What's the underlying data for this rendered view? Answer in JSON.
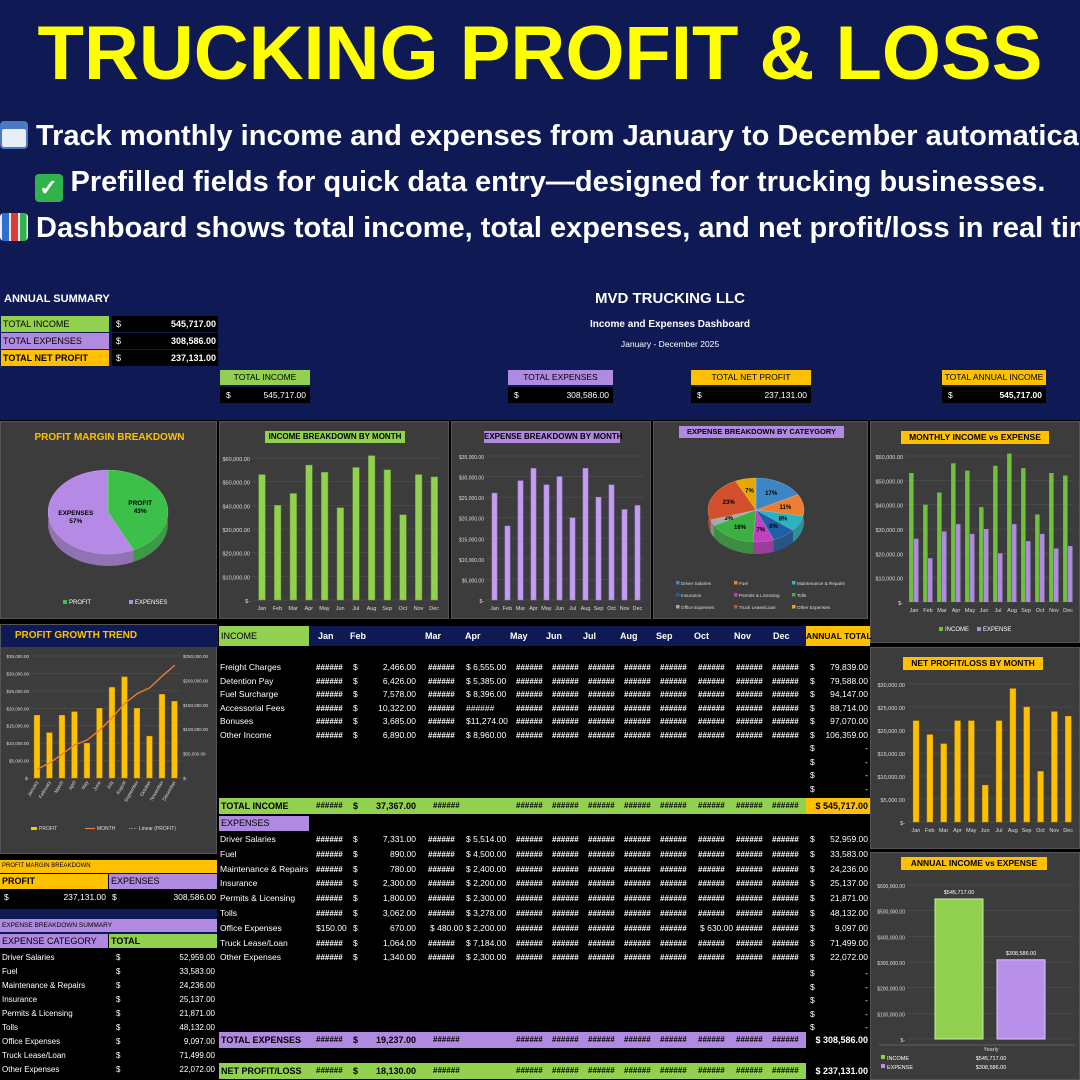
{
  "hero": {
    "title": "TRUCKING PROFIT & LOSS",
    "line1": "Track monthly income and expenses from January to December automatically.",
    "line2": "Prefilled fields for quick data entry—designed for trucking businesses.",
    "line3": "Dashboard shows total income, total expenses, and net profit/loss in real time.",
    "icons": [
      "calendar-icon",
      "check-box-icon",
      "bar-chart-icon"
    ]
  },
  "summary": {
    "title": "ANNUAL SUMMARY",
    "rows": [
      {
        "label": "TOTAL INCOME",
        "cur": "$",
        "value": "545,717.00"
      },
      {
        "label": "TOTAL EXPENSES",
        "cur": "$",
        "value": "308,586.00"
      },
      {
        "label": "TOTAL NET PROFIT",
        "cur": "$",
        "value": "237,131.00"
      }
    ]
  },
  "header": {
    "company": "MVD TRUCKING LLC",
    "subtitle": "Income and Expenses Dashboard",
    "period": "January - December 2025"
  },
  "kpis": [
    {
      "label": "TOTAL INCOME",
      "cur": "$",
      "value": "545,717.00",
      "color": "#92d050"
    },
    {
      "label": "TOTAL EXPENSES",
      "cur": "$",
      "value": "308,586.00",
      "color": "#b08ae0"
    },
    {
      "label": "TOTAL NET PROFIT",
      "cur": "$",
      "value": "237,131.00",
      "color": "#ffc000"
    },
    {
      "label": "TOTAL ANNUAL INCOME",
      "cur": "$",
      "value": "545,717.00",
      "color": "#ffc000"
    }
  ],
  "months_short": [
    "Jan",
    "Feb",
    "Mar",
    "Apr",
    "May",
    "Jun",
    "Jul",
    "Aug",
    "Sep",
    "Oct",
    "Nov",
    "Dec"
  ],
  "months_long": [
    "January",
    "February",
    "March",
    "April",
    "May",
    "June",
    "July",
    "August",
    "September",
    "October",
    "November",
    "December"
  ],
  "profit_margin_chart": {
    "title": "PROFIT MARGIN BREAKDOWN",
    "slices": [
      {
        "label": "PROFIT",
        "pct": "43%",
        "value": 43,
        "color": "#3cc04a"
      },
      {
        "label": "EXPENSES",
        "pct": "57%",
        "value": 57,
        "color": "#b58ae6"
      }
    ],
    "legend": [
      "PROFIT",
      "EXPENSES"
    ]
  },
  "income_month_chart": {
    "title": "INCOME BREAKDOWN BY MONTH",
    "yticks": [
      "$60,000.00",
      "$50,000.00",
      "$40,000.00",
      "$30,000.00",
      "$20,000.00",
      "$10,000.00",
      "$-"
    ],
    "ymax": 60000,
    "values": [
      53000,
      40000,
      45000,
      57000,
      54000,
      39000,
      56000,
      61000,
      55000,
      36000,
      53000,
      52000
    ]
  },
  "expense_month_chart": {
    "title": "EXPENSE BREAKDOWN BY MONTH",
    "yticks": [
      "$35,000.00",
      "$30,000.00",
      "$25,000.00",
      "$20,000.00",
      "$15,000.00",
      "$10,000.00",
      "$5,000.00",
      "$-"
    ],
    "ymax": 35000,
    "values": [
      26000,
      18000,
      29000,
      32000,
      28000,
      30000,
      20000,
      32000,
      25000,
      28000,
      22000,
      23000
    ]
  },
  "category_chart": {
    "title": "EXPENSE BREAKDOWN BY CATEYGORY",
    "slices": [
      {
        "label": "Driver Salaries",
        "pct": "17%",
        "value": 17,
        "color": "#3d86c6"
      },
      {
        "label": "Fuel",
        "pct": "11%",
        "value": 11,
        "color": "#ed7d31"
      },
      {
        "label": "Maintenance & Repairs",
        "pct": "8%",
        "value": 8,
        "color": "#2bb3c0"
      },
      {
        "label": "Insurance",
        "pct": "8%",
        "value": 8,
        "color": "#1f5fa8"
      },
      {
        "label": "Permits & Licensing",
        "pct": "7%",
        "value": 7,
        "color": "#c040c0"
      },
      {
        "label": "Tolls",
        "pct": "16%",
        "value": 16,
        "color": "#3cb043"
      },
      {
        "label": "Office Expenses",
        "pct": "3%",
        "value": 3,
        "color": "#a9a9a9"
      },
      {
        "label": "Truck Lease/Loan",
        "pct": "23%",
        "value": 23,
        "color": "#d2502c"
      },
      {
        "label": "Other Expenses",
        "pct": "7%",
        "value": 7,
        "color": "#e6a800"
      }
    ]
  },
  "monthly_ie_chart": {
    "title": "MONTHLY INCOME vs EXPENSE",
    "yticks": [
      "$60,000.00",
      "$50,000.00",
      "$40,000.00",
      "$30,000.00",
      "$20,000.00",
      "$10,000.00",
      "$-"
    ],
    "ymax": 60000,
    "income": [
      53000,
      40000,
      45000,
      57000,
      54000,
      39000,
      56000,
      61000,
      55000,
      36000,
      53000,
      52000
    ],
    "expense": [
      26000,
      18000,
      29000,
      32000,
      28000,
      30000,
      20000,
      32000,
      25000,
      28000,
      22000,
      23000
    ],
    "legend": [
      "INCOME",
      "EXPENSE"
    ]
  },
  "profit_growth_chart": {
    "title": "PROFIT GROWTH TREND",
    "yticks_left": [
      "$35,000.00",
      "$30,000.00",
      "$25,000.00",
      "$20,000.00",
      "$15,000.00",
      "$10,000.00",
      "$5,000.00",
      "$-"
    ],
    "yticks_right": [
      "$250,000.00",
      "$200,000.00",
      "$150,000.00",
      "$100,000.00",
      "$50,000.00",
      "$-"
    ],
    "ymax_left": 35000,
    "ymax_right": 250000,
    "values": [
      18000,
      13000,
      18000,
      19000,
      10000,
      20000,
      26000,
      29000,
      20000,
      12000,
      24000,
      22000
    ],
    "cumulative": [
      18000,
      31000,
      49000,
      68000,
      78000,
      98000,
      124000,
      153000,
      173000,
      185000,
      209000,
      231000
    ],
    "legend": [
      "PROFIT",
      "MONTH",
      "Linear (PROFIT)"
    ]
  },
  "net_profit_chart": {
    "title": "NET PROFIT/LOSS BY MONTH",
    "yticks": [
      "$30,000.00",
      "$25,000.00",
      "$20,000.00",
      "$15,000.00",
      "$10,000.00",
      "$5,000.00",
      "$-"
    ],
    "ymax": 30000,
    "values": [
      22000,
      19000,
      17000,
      22000,
      22000,
      8000,
      22000,
      29000,
      25000,
      11000,
      24000,
      23000
    ]
  },
  "annual_ie_chart": {
    "title": "ANNUAL INCOME vs EXPENSE",
    "yticks": [
      "$600,000.00",
      "$500,000.00",
      "$400,000.00",
      "$300,000.00",
      "$200,000.00",
      "$100,000.00",
      "$-"
    ],
    "ymax": 600000,
    "income": 545717,
    "expense": 308586,
    "income_label": "$545,717.00",
    "expense_label": "$308,586.00",
    "category": "Yearly",
    "table": [
      {
        "label": "INCOME",
        "value": "$545,717.00"
      },
      {
        "label": "EXPENSE",
        "value": "$308,586.00"
      }
    ]
  },
  "table": {
    "income_header": "INCOME",
    "annual_total_header": "ANNUAL TOTAL",
    "hash": "######",
    "income_rows": [
      {
        "label": "Freight Charges",
        "feb": "2,466.00",
        "mar": "$ 6,555.00",
        "total": "79,839.00"
      },
      {
        "label": "Detention Pay",
        "feb": "6,426.00",
        "mar": "$ 5,385.00",
        "total": "79,588.00"
      },
      {
        "label": "Fuel Surcharge",
        "feb": "7,578.00",
        "mar": "$ 8,396.00",
        "total": "94,147.00"
      },
      {
        "label": "Accessorial Fees",
        "feb": "10,322.00",
        "mar": "######",
        "total": "88,714.00"
      },
      {
        "label": "Bonuses",
        "feb": "3,685.00",
        "mar": "$11,274.00",
        "total": "97,070.00"
      },
      {
        "label": "Other Income",
        "feb": "6,890.00",
        "mar": "$ 8,960.00",
        "total": "106,359.00"
      }
    ],
    "total_income": {
      "label": "TOTAL INCOME",
      "feb": "37,367.00",
      "total": "$ 545,717.00"
    },
    "expenses_header": "EXPENSES",
    "expense_rows": [
      {
        "label": "Driver Salaries",
        "feb": "7,331.00",
        "mar": "$ 5,514.00",
        "total": "52,959.00"
      },
      {
        "label": "Fuel",
        "feb": "890.00",
        "mar": "$ 4,500.00",
        "total": "33,583.00"
      },
      {
        "label": "Maintenance & Repairs",
        "feb": "780.00",
        "mar": "$ 2,400.00",
        "total": "24,236.00"
      },
      {
        "label": "Insurance",
        "feb": "2,300.00",
        "mar": "$ 2,200.00",
        "total": "25,137.00"
      },
      {
        "label": "Permits & Licensing",
        "feb": "1,800.00",
        "mar": "$ 2,300.00",
        "total": "21,871.00"
      },
      {
        "label": "Tolls",
        "feb": "3,062.00",
        "mar": "$ 3,278.00",
        "total": "48,132.00"
      },
      {
        "label": "Office Expenses",
        "jan": "$150.00",
        "feb": "670.00",
        "mar_pre": "$ 480.00",
        "mar": "$ 2,200.00",
        "oct": "$ 630.00",
        "total": "9,097.00"
      },
      {
        "label": "Truck Lease/Loan",
        "feb": "1,064.00",
        "mar": "$ 7,184.00",
        "total": "71,499.00"
      },
      {
        "label": "Other Expenses",
        "feb": "1,340.00",
        "mar": "$ 2,300.00",
        "total": "22,072.00"
      }
    ],
    "total_expenses": {
      "label": "TOTAL EXPENSES",
      "feb": "19,237.00",
      "total": "$ 308,586.00"
    },
    "net_profit": {
      "label": "NET PROFIT/LOSS",
      "feb": "18,130.00",
      "total": "$ 237,131.00"
    }
  },
  "margin_table": {
    "title": "PROFIT MARGIN BREAKDOWN",
    "col1": "PROFIT",
    "col2": "EXPENSES",
    "profit": "237,131.00",
    "expenses": "308,586.00"
  },
  "category_table": {
    "title": "EXPENSE BREAKDOWN SUMMARY",
    "col1": "EXPENSE CATEGORY",
    "col2": "TOTAL",
    "rows": [
      {
        "label": "Driver Salaries",
        "value": "52,959.00"
      },
      {
        "label": "Fuel",
        "value": "33,583.00"
      },
      {
        "label": "Maintenance & Repairs",
        "value": "24,236.00"
      },
      {
        "label": "Insurance",
        "value": "25,137.00"
      },
      {
        "label": "Permits & Licensing",
        "value": "21,871.00"
      },
      {
        "label": "Tolls",
        "value": "48,132.00"
      },
      {
        "label": "Office Expenses",
        "value": "9,097.00"
      },
      {
        "label": "Truck Lease/Loan",
        "value": "71,499.00"
      },
      {
        "label": "Other Expenses",
        "value": "22,072.00"
      }
    ]
  },
  "colors": {
    "navy": "#0f1a55",
    "green": "#92d050",
    "purple": "#b08ae0",
    "gold": "#ffc000",
    "yellow": "#ffff00"
  }
}
